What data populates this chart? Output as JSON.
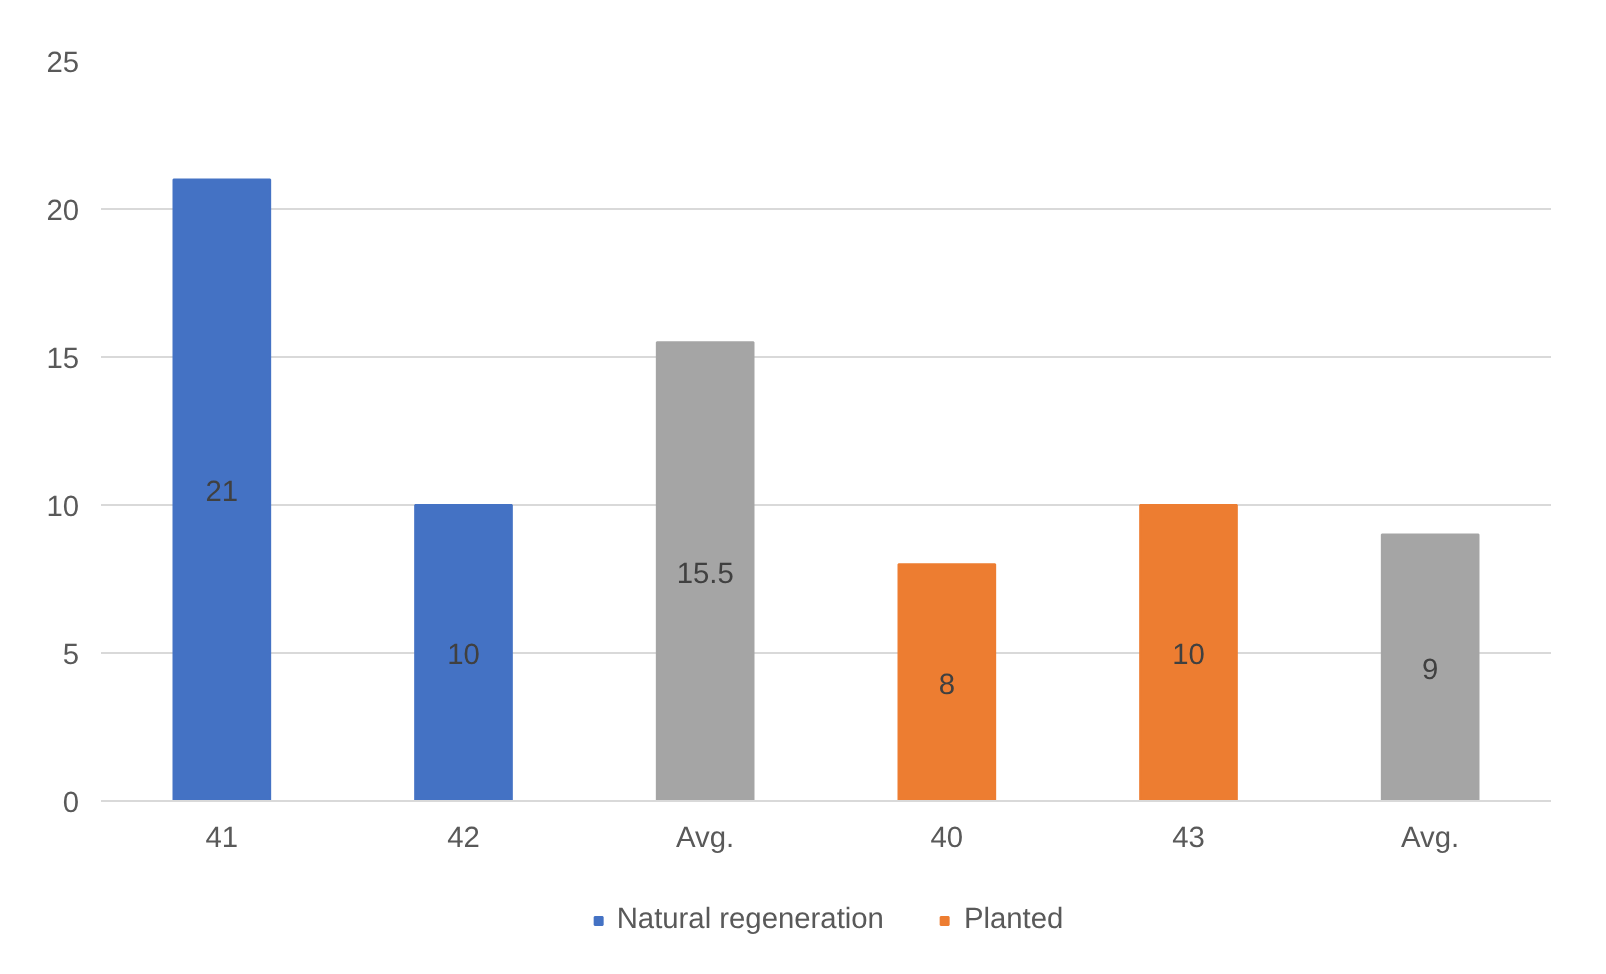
{
  "chart_data": {
    "type": "bar",
    "categories": [
      "41",
      "42",
      "Avg.",
      "40",
      "43",
      "Avg."
    ],
    "series": [
      {
        "name": "Natural regeneration",
        "color": "#4472c4",
        "values": [
          21,
          10,
          null,
          null,
          null,
          null
        ]
      },
      {
        "name": "Planted",
        "color": "#ed7d31",
        "values": [
          null,
          null,
          null,
          8,
          10,
          null
        ]
      },
      {
        "color": "#a5a5a5",
        "values": [
          null,
          null,
          15.5,
          null,
          null,
          9
        ]
      }
    ],
    "stacked": true,
    "ylim": [
      0,
      25
    ],
    "yticks": [
      0,
      5,
      10,
      15,
      20,
      25
    ],
    "grid": "y",
    "legend": "bottom",
    "data_labels": true
  }
}
